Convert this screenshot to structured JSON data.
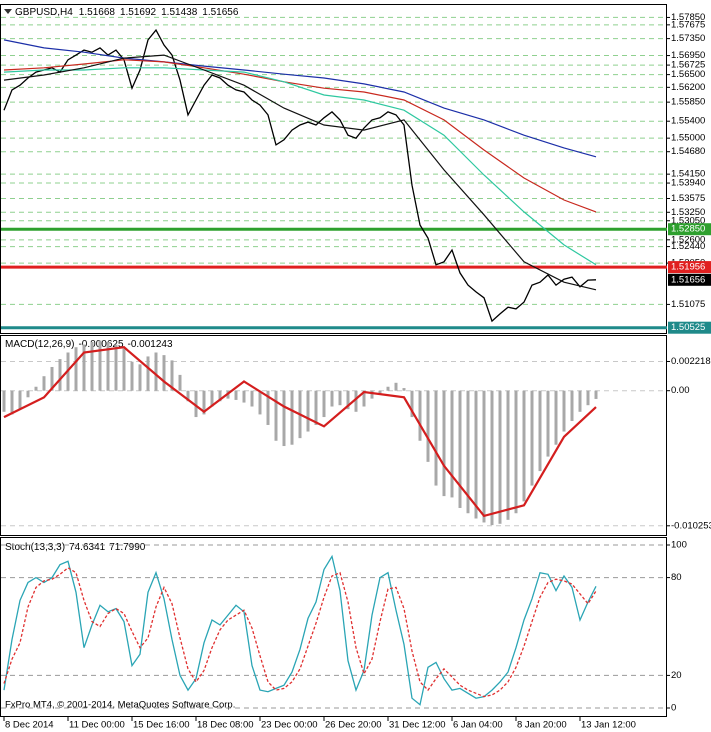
{
  "chart_data": [
    {
      "type": "line",
      "title": "GBPUSD,H4",
      "ohlc": [
        1.51668,
        1.51692,
        1.51438,
        1.51656
      ],
      "ylim": [
        1.504,
        1.5812
      ],
      "yticks": [
        {
          "value": 1.5785,
          "label": "1.57850"
        },
        1.57675,
        {
          "value": 1.5735,
          "label": "1.57350"
        },
        {
          "value": 1.5695,
          "label": "1.56950"
        },
        1.56725,
        {
          "value": 1.565,
          "label": "1.56500"
        },
        {
          "value": 1.562,
          "label": "1.56200"
        },
        {
          "value": 1.5585,
          "label": "1.55850"
        },
        {
          "value": 1.554,
          "label": "1.55400"
        },
        {
          "value": 1.55,
          "label": "1.55000"
        },
        {
          "value": 1.5468,
          "label": "1.54680"
        },
        {
          "value": 1.5415,
          "label": "1.54150"
        },
        {
          "value": 1.5394,
          "label": "1.53940"
        },
        1.53575,
        {
          "value": 1.5325,
          "label": "1.53250"
        },
        {
          "value": 1.5305,
          "label": "1.53050"
        },
        {
          "value": 1.526,
          "label": "1.52600"
        },
        {
          "value": 1.5244,
          "label": "1.52440"
        },
        {
          "value": 1.5205,
          "label": "1.52050"
        },
        1.51075
      ],
      "grid": true,
      "levels": [
        {
          "value": 1.50525,
          "color": "#1f8a8a"
        },
        {
          "value": 1.5285,
          "label": "1.52850",
          "color": "#2ea02e"
        },
        {
          "value": 1.51956,
          "color": "#e02020"
        }
      ],
      "series": [
        {
          "color": "#000000",
          "values": [
            1.5566,
            1.5614,
            1.5625,
            1.5642,
            1.5656,
            1.5661,
            1.5666,
            1.5656,
            1.5685,
            1.5696,
            1.5708,
            1.5703,
            1.5713,
            1.5696,
            1.5708,
            1.5685,
            1.5618,
            1.5661,
            1.5732,
            1.5755,
            1.572,
            1.5696,
            1.5637,
            1.5555,
            1.559,
            1.5625,
            1.5649,
            1.5642,
            1.5625,
            1.5614,
            1.5609,
            1.559,
            1.5578,
            1.5555,
            1.5484,
            1.5496,
            1.5519,
            1.5531,
            1.5538,
            1.5531,
            1.5548,
            1.5562,
            1.5543,
            1.5507,
            1.55,
            1.5524,
            1.5543,
            1.5548,
            1.5562,
            1.5555,
            1.5531,
            1.5389,
            1.5295,
            1.5264,
            1.5201,
            1.5208,
            1.5236,
            1.5182,
            1.5153,
            1.5137,
            1.5123,
            1.5068,
            1.5085,
            1.5101,
            1.5097,
            1.5113,
            1.5153,
            1.516,
            1.5177,
            1.5153,
            1.5167,
            1.5172,
            1.5149,
            1.5165,
            1.51656
          ]
        },
        {
          "color": "#1c2fa8",
          "x": [
            0,
            5,
            10,
            15,
            20,
            25,
            30,
            35,
            40,
            45,
            50,
            55,
            60,
            65,
            70,
            74
          ],
          "values": [
            1.5732,
            1.5713,
            1.5703,
            1.5689,
            1.568,
            1.567,
            1.5661,
            1.5651,
            1.5642,
            1.5628,
            1.5609,
            1.5571,
            1.5543,
            1.5507,
            1.5477,
            1.5456
          ]
        },
        {
          "color": "#c8281e",
          "x": [
            0,
            5,
            10,
            15,
            20,
            25,
            30,
            35,
            40,
            45,
            50,
            55,
            60,
            65,
            70,
            74
          ],
          "values": [
            1.5661,
            1.5666,
            1.5675,
            1.5685,
            1.568,
            1.5666,
            1.5651,
            1.5633,
            1.5618,
            1.5609,
            1.559,
            1.5543,
            1.5472,
            1.5406,
            1.5354,
            1.5326
          ]
        },
        {
          "color": "#2ec8a0",
          "x": [
            0,
            5,
            10,
            15,
            20,
            25,
            30,
            35,
            40,
            45,
            50,
            55,
            60,
            65,
            70,
            74
          ],
          "values": [
            1.5656,
            1.5661,
            1.5661,
            1.5666,
            1.5666,
            1.5661,
            1.5656,
            1.5633,
            1.5602,
            1.559,
            1.5566,
            1.5507,
            1.5413,
            1.5326,
            1.5248,
            1.5201
          ]
        },
        {
          "color": "#111111",
          "x": [
            0,
            5,
            10,
            15,
            20,
            25,
            30,
            35,
            40,
            45,
            50,
            55,
            60,
            65,
            70,
            74
          ],
          "values": [
            1.5637,
            1.5649,
            1.5666,
            1.5689,
            1.5696,
            1.5661,
            1.5625,
            1.5571,
            1.5531,
            1.5519,
            1.5543,
            1.5425,
            1.5319,
            1.5208,
            1.516,
            1.5142
          ]
        }
      ]
    },
    {
      "type": "bar",
      "title": "MACD(12,26,9)",
      "readings": {
        "values": [
          -0.000625,
          -0.001243
        ]
      },
      "ylim": [
        -0.0108,
        0.004
      ],
      "yticks": [
        0.002218,
        {
          "value": 0,
          "label": "0.00"
        },
        -0.010253
      ],
      "grid": true,
      "color": "#a8a8a8",
      "values": [
        -0.0016,
        -0.0018,
        -0.0014,
        -0.0005,
        0.0003,
        0.0011,
        0.0018,
        0.0024,
        0.0029,
        0.0033,
        0.0035,
        0.0037,
        0.0038,
        0.0037,
        0.0035,
        0.0032,
        0.0022,
        0.002,
        0.0026,
        0.0029,
        0.0027,
        0.0023,
        0.0012,
        -0.0008,
        -0.002,
        -0.0018,
        -0.0012,
        -0.0008,
        -0.0006,
        -0.0007,
        -0.0009,
        -0.0012,
        -0.0018,
        -0.0026,
        -0.0038,
        -0.0042,
        -0.0041,
        -0.0036,
        -0.0031,
        -0.0026,
        -0.002,
        -0.0012,
        -0.0011,
        -0.0014,
        -0.0016,
        -0.0012,
        -0.0006,
        -0.0002,
        0.0003,
        0.0006,
        0.0002,
        -0.002,
        -0.0038,
        -0.0054,
        -0.0072,
        -0.008,
        -0.0081,
        -0.0089,
        -0.0093,
        -0.0097,
        -0.01,
        -0.0102,
        -0.0101,
        -0.0098,
        -0.0093,
        -0.0084,
        -0.0072,
        -0.0061,
        -0.005,
        -0.0041,
        -0.0031,
        -0.0023,
        -0.0016,
        -0.0011,
        -0.000625
      ],
      "signal": {
        "color": "#d41e1e",
        "x": [
          0,
          5,
          10,
          15,
          20,
          25,
          30,
          35,
          40,
          45,
          50,
          55,
          60,
          65,
          70,
          74
        ],
        "values": [
          -0.002,
          -0.0005,
          0.0029,
          0.0033,
          0.0007,
          -0.0016,
          0.0007,
          -0.0012,
          -0.0027,
          -0.0001,
          -0.0005,
          -0.0057,
          -0.0095,
          -0.0087,
          -0.0035,
          -0.001243
        ]
      }
    },
    {
      "type": "line",
      "title": "Stoch(13,3,3)",
      "readings": {
        "values": [
          74.6341,
          71.799
        ],
        "value_labels": [
          "74.6341",
          "71.7990"
        ]
      },
      "ylim": [
        0,
        100
      ],
      "yticks": [
        100,
        80,
        20,
        0
      ],
      "grid": true,
      "categories": [
        "8 Dec 2014",
        null,
        null,
        null,
        null,
        null,
        null,
        null,
        "11 Dec 00:00",
        null,
        null,
        null,
        null,
        null,
        null,
        null,
        "15 Dec 16:00",
        null,
        null,
        null,
        null,
        null,
        null,
        null,
        "18 Dec 08:00",
        null,
        null,
        null,
        null,
        null,
        null,
        null,
        "23 Dec 00:00",
        null,
        null,
        null,
        null,
        null,
        null,
        null,
        "26 Dec 20:00",
        null,
        null,
        null,
        null,
        null,
        null,
        null,
        "31 Dec 12:00",
        null,
        null,
        null,
        null,
        null,
        null,
        null,
        "6 Jan 04:00",
        null,
        null,
        null,
        null,
        null,
        null,
        null,
        "8 Jan 20:00",
        null,
        null,
        null,
        null,
        null,
        null,
        null,
        "13 Jan 12:00",
        null,
        null
      ],
      "series": [
        {
          "color": "#2aa5b5",
          "values": [
            11,
            42,
            66,
            77,
            80,
            77,
            80,
            88,
            90,
            71,
            37,
            51,
            63,
            59,
            61,
            53,
            26,
            33,
            71,
            83,
            67,
            42,
            20,
            11,
            18,
            40,
            54,
            51,
            57,
            63,
            59,
            26,
            11,
            10,
            12,
            14,
            22,
            36,
            55,
            65,
            85,
            93,
            72,
            29,
            11,
            23,
            57,
            80,
            83,
            60,
            39,
            6,
            2,
            25,
            28,
            18,
            11,
            12,
            9,
            6,
            7,
            11,
            16,
            22,
            37,
            54,
            67,
            83,
            82,
            72,
            81,
            74,
            54,
            65,
            74.6341
          ]
        },
        {
          "color": "#e03030",
          "dashed": true,
          "values": [
            15,
            30,
            40,
            62,
            74,
            78,
            79,
            82,
            86,
            83,
            66,
            53,
            50,
            58,
            61,
            58,
            47,
            37,
            43,
            62,
            74,
            64,
            43,
            24,
            16,
            23,
            37,
            48,
            54,
            57,
            60,
            49,
            32,
            16,
            11,
            12,
            16,
            24,
            38,
            52,
            68,
            81,
            83,
            65,
            37,
            21,
            30,
            53,
            73,
            74,
            61,
            35,
            16,
            11,
            18,
            24,
            19,
            14,
            11,
            9,
            7,
            8,
            11,
            16,
            25,
            38,
            53,
            68,
            77,
            79,
            78,
            76,
            70,
            64,
            71.799
          ]
        }
      ]
    }
  ],
  "footer": "FxPro MT4, © 2001-2014, MetaQuotes Software Corp."
}
